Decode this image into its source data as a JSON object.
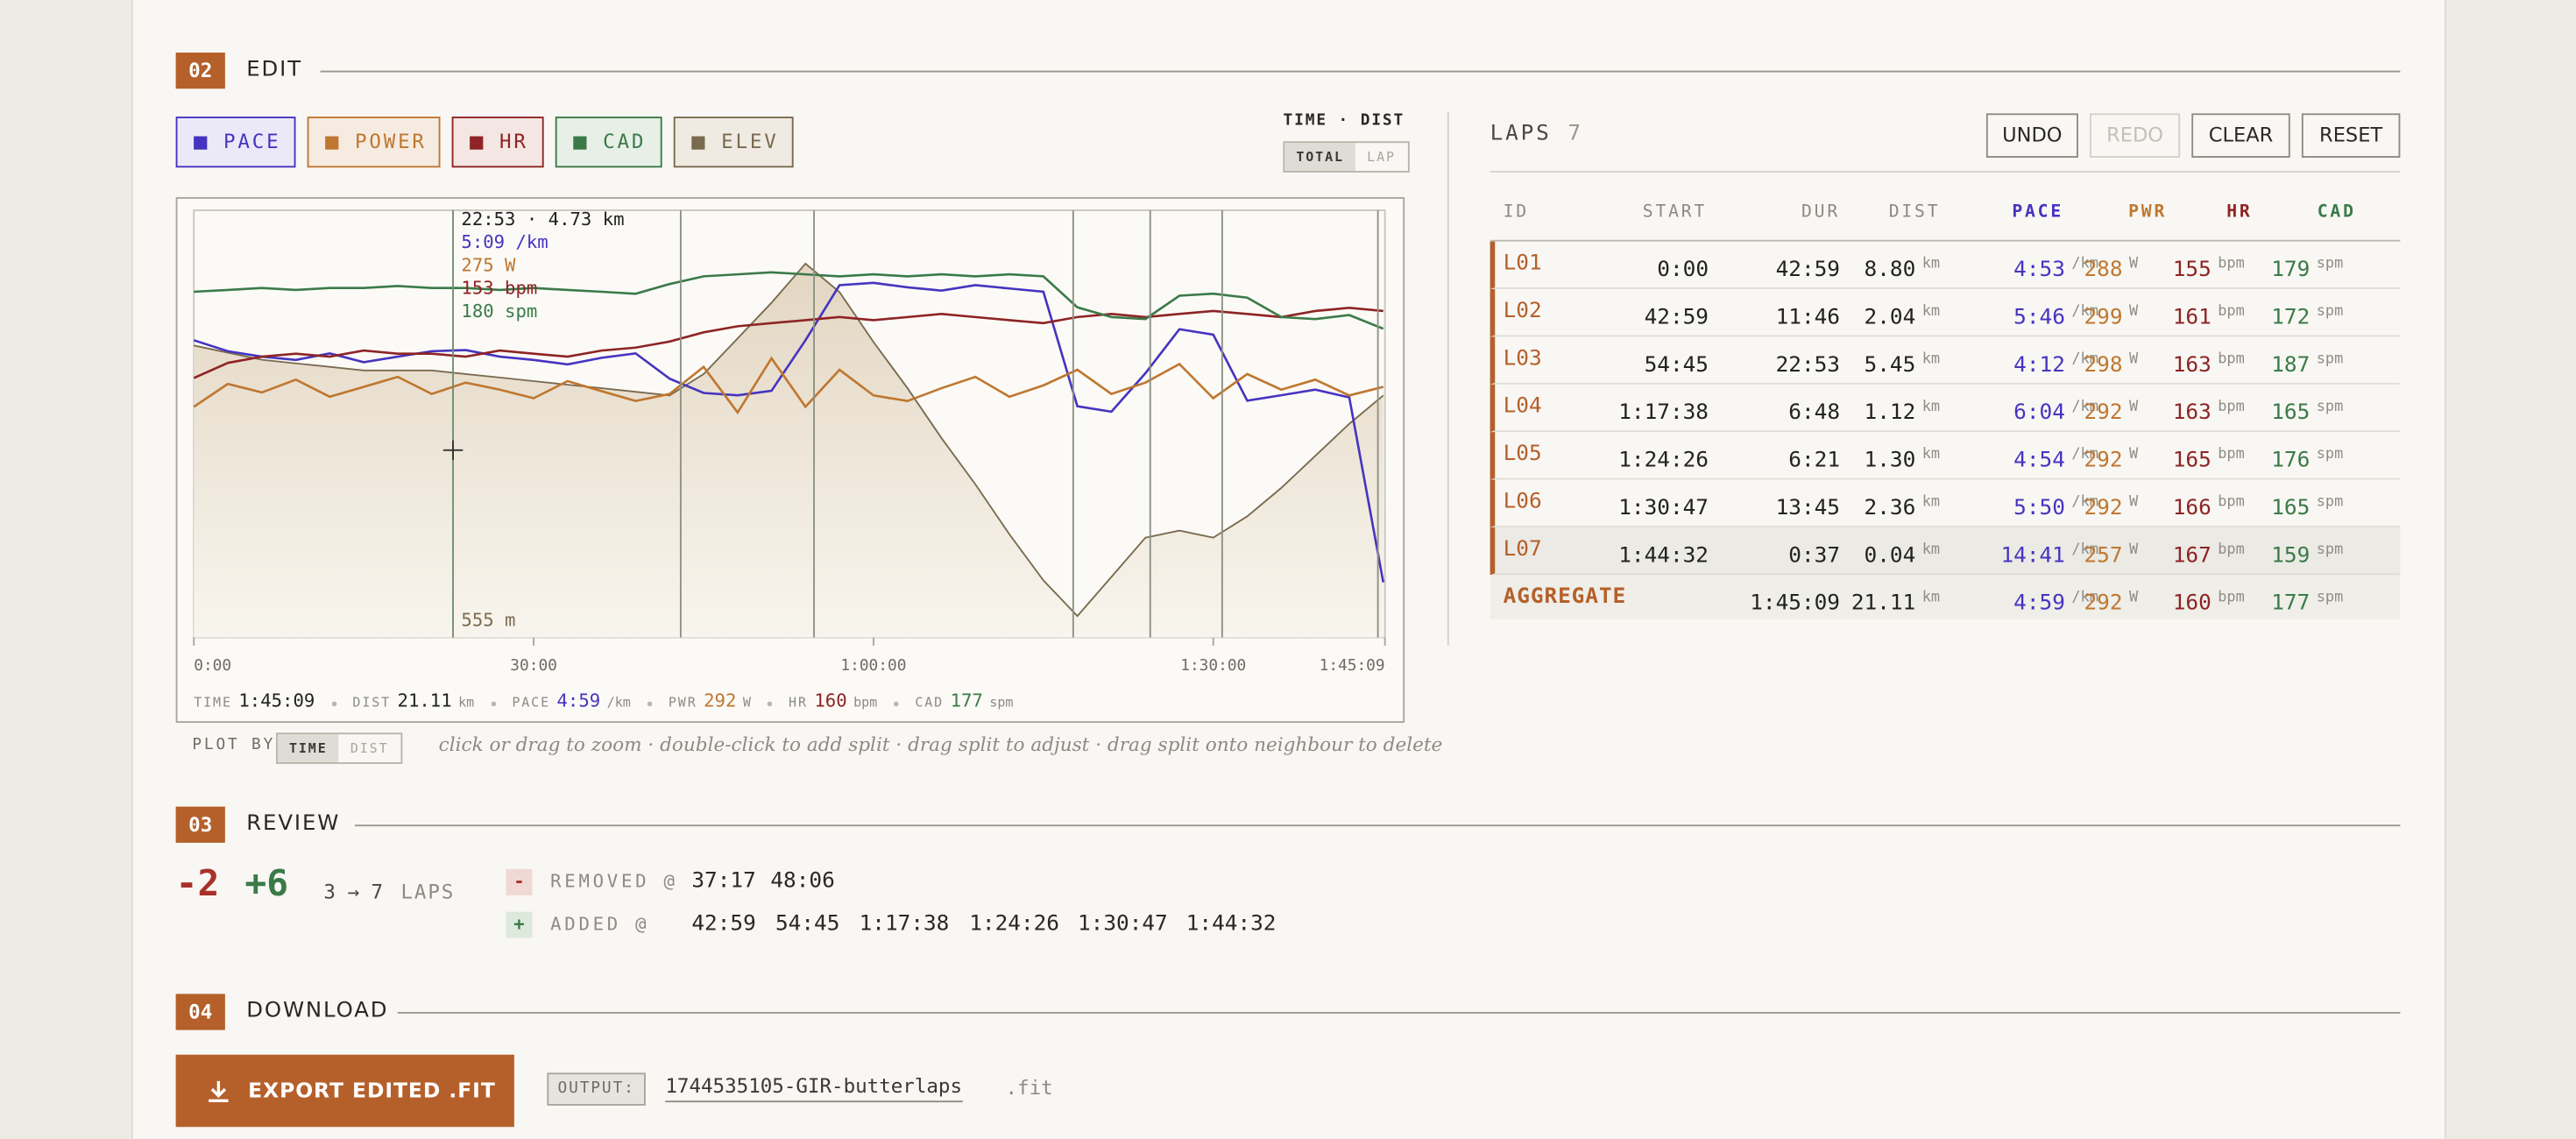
{
  "sections": {
    "edit": {
      "number": "02",
      "title": "EDIT"
    },
    "review": {
      "number": "03",
      "title": "REVIEW"
    },
    "download": {
      "number": "04",
      "title": "DOWNLOAD"
    }
  },
  "view": {
    "label": "TIME · DIST",
    "options": [
      "TOTAL",
      "LAP"
    ]
  },
  "chart_data": {
    "type": "line",
    "x": [
      0,
      3,
      6,
      9,
      12,
      15,
      18,
      21,
      24,
      27,
      30,
      33,
      36,
      39,
      42,
      45,
      48,
      51,
      54,
      57,
      60,
      63,
      66,
      69,
      72,
      75,
      78,
      81,
      84,
      87,
      90,
      93,
      96,
      99,
      102,
      105
    ],
    "xlim": [
      0,
      105.15
    ],
    "xticks": [
      {
        "value": 0,
        "label": "0:00"
      },
      {
        "value": 30,
        "label": "30:00"
      },
      {
        "value": 60,
        "label": "1:00:00"
      },
      {
        "value": 90,
        "label": "1:30:00"
      },
      {
        "value": 105.15,
        "label": "1:45:09"
      }
    ],
    "splits": [
      42.98,
      54.75,
      77.63,
      84.43,
      90.78,
      104.53
    ],
    "series": [
      {
        "name": "PACE",
        "color": "#4634c0",
        "ylim": [
          570,
          182
        ],
        "values": [
          300,
          310,
          315,
          318,
          312,
          320,
          315,
          310,
          309,
          315,
          318,
          322,
          316,
          312,
          335,
          348,
          350,
          346,
          300,
          250,
          248,
          252,
          255,
          250,
          253,
          256,
          360,
          365,
          330,
          290,
          295,
          355,
          350,
          345,
          352,
          520
        ]
      },
      {
        "name": "POWER",
        "color": "#bf7730",
        "ylim": [
          100,
          400
        ],
        "values": [
          262,
          278,
          272,
          281,
          269,
          276,
          283,
          271,
          279,
          274,
          268,
          280,
          273,
          266,
          271,
          290,
          258,
          296,
          262,
          288,
          270,
          266,
          275,
          283,
          269,
          277,
          288,
          271,
          279,
          292,
          268,
          285,
          274,
          281,
          270,
          276
        ]
      },
      {
        "name": "HR",
        "color": "#8e2424",
        "ylim": [
          60,
          200
        ],
        "values": [
          145,
          150,
          152,
          153,
          152,
          154,
          153,
          153,
          152,
          154,
          153,
          152,
          154,
          155,
          157,
          160,
          162,
          163,
          164,
          165,
          164,
          165,
          166,
          165,
          164,
          163,
          165,
          166,
          165,
          166,
          167,
          166,
          165,
          167,
          168,
          167
        ]
      },
      {
        "name": "CAD",
        "color": "#3b7a48",
        "ylim": [
          0,
          220
        ],
        "values": [
          178,
          179,
          180,
          179,
          180,
          180,
          181,
          180,
          180,
          179,
          180,
          179,
          178,
          177,
          182,
          186,
          187,
          188,
          187,
          186,
          187,
          186,
          187,
          186,
          187,
          186,
          170,
          165,
          164,
          176,
          177,
          175,
          165,
          164,
          166,
          159
        ]
      },
      {
        "name": "ELEV",
        "color": "#7a6a4f",
        "ylim": [
          480,
          600
        ],
        "fill": true,
        "values": [
          562,
          560,
          558,
          557,
          556,
          555,
          555,
          555,
          554,
          553,
          552,
          551,
          550,
          549,
          548,
          554,
          564,
          574,
          585,
          577,
          563,
          550,
          536,
          523,
          509,
          496,
          486,
          497,
          508,
          510,
          508,
          514,
          522,
          531,
          540,
          548
        ]
      }
    ],
    "cursor": {
      "x": 22.88,
      "heading": "22:53 · 4.73 km",
      "readouts": [
        "5:09 /km",
        "275 W",
        "153 bpm",
        "180 spm",
        "555 m"
      ]
    }
  },
  "summary": [
    {
      "label": "TIME",
      "value": "1:45:09"
    },
    {
      "label": "DIST",
      "value": "21.11",
      "unit": "km"
    },
    {
      "label": "PACE",
      "value": "4:59",
      "unit": "/km"
    },
    {
      "label": "PWR",
      "value": "292",
      "unit": "W"
    },
    {
      "label": "HR",
      "value": "160",
      "unit": "bpm"
    },
    {
      "label": "CAD",
      "value": "177",
      "unit": "spm"
    }
  ],
  "plot_by": {
    "label": "PLOT BY",
    "options": [
      "TIME",
      "DIST"
    ]
  },
  "hint": "click or drag to zoom · double-click to add split · drag split to adjust · drag split onto neighbour to delete",
  "laps": {
    "title": "LAPS",
    "count": "7",
    "buttons": [
      "UNDO",
      "REDO",
      "CLEAR",
      "RESET"
    ],
    "columns": [
      {
        "label": "ID"
      },
      {
        "label": "START"
      },
      {
        "label": "DUR"
      },
      {
        "label": "DIST",
        "unit": "km"
      },
      {
        "label": "PACE",
        "unit": "/km"
      },
      {
        "label": "PWR",
        "unit": "W"
      },
      {
        "label": "HR",
        "unit": "bpm"
      },
      {
        "label": "CAD",
        "unit": "spm"
      }
    ],
    "rows": [
      [
        "L01",
        "0:00",
        "42:59",
        "8.80",
        "4:53",
        "288",
        "155",
        "179"
      ],
      [
        "L02",
        "42:59",
        "11:46",
        "2.04",
        "5:46",
        "299",
        "161",
        "172"
      ],
      [
        "L03",
        "54:45",
        "22:53",
        "5.45",
        "4:12",
        "298",
        "163",
        "187"
      ],
      [
        "L04",
        "1:17:38",
        "6:48",
        "1.12",
        "6:04",
        "292",
        "163",
        "165"
      ],
      [
        "L05",
        "1:24:26",
        "6:21",
        "1.30",
        "4:54",
        "292",
        "165",
        "176"
      ],
      [
        "L06",
        "1:30:47",
        "13:45",
        "2.36",
        "5:50",
        "292",
        "166",
        "165"
      ],
      [
        "L07",
        "1:44:32",
        "0:37",
        "0.04",
        "14:41",
        "257",
        "167",
        "159"
      ]
    ],
    "aggregate": {
      "label": "AGGREGATE",
      "values": [
        "1:45:09",
        "21.11",
        "4:59",
        "292",
        "160",
        "177"
      ]
    }
  },
  "review": {
    "removed_count": "-2",
    "added_count": "+6",
    "laps_change": "3 → 7",
    "laps_label": "LAPS",
    "removed": {
      "badge": "-",
      "label": "REMOVED @",
      "times": [
        "37:17",
        "48:06"
      ]
    },
    "added": {
      "badge": "+",
      "label": "ADDED @",
      "times": [
        "42:59",
        "54:45",
        "1:17:38",
        "1:24:26",
        "1:30:47",
        "1:44:32"
      ]
    }
  },
  "download": {
    "button": "EXPORT EDITED .FIT",
    "output_label": "OUTPUT:",
    "filename": "1744535105-GIR-butterlaps",
    "extension": ".fit"
  }
}
